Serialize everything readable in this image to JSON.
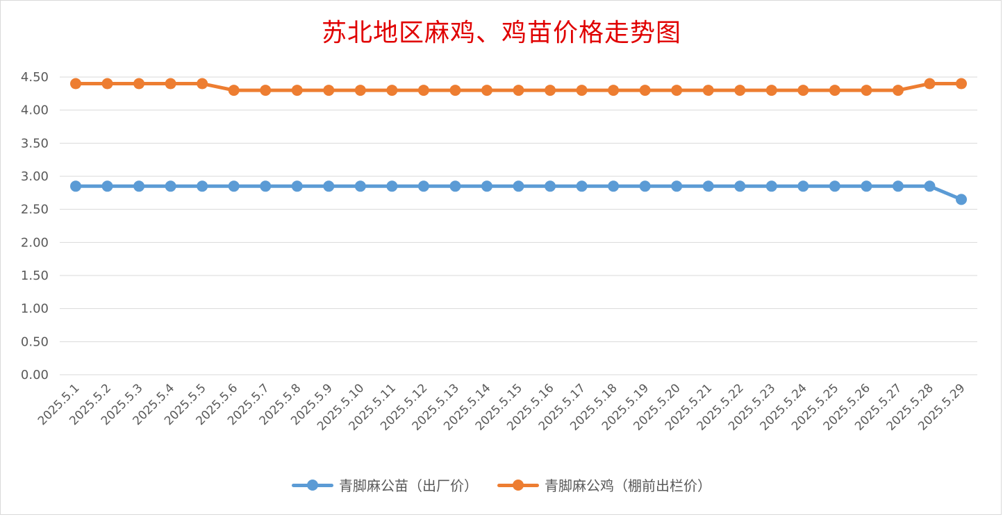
{
  "chart_data": {
    "type": "line",
    "title": "苏北地区麻鸡、鸡苗价格走势图",
    "xlabel": "",
    "ylabel": "",
    "ylim": [
      0,
      4.5
    ],
    "y_ticks": [
      "0.00",
      "0.50",
      "1.00",
      "1.50",
      "2.00",
      "2.50",
      "3.00",
      "3.50",
      "4.00",
      "4.50"
    ],
    "grid": true,
    "legend_position": "bottom",
    "categories": [
      "2025.5.1",
      "2025.5.2",
      "2025.5.3",
      "2025.5.4",
      "2025.5.5",
      "2025.5.6",
      "2025.5.7",
      "2025.5.8",
      "2025.5.9",
      "2025.5.10",
      "2025.5.11",
      "2025.5.12",
      "2025.5.13",
      "2025.5.14",
      "2025.5.15",
      "2025.5.16",
      "2025.5.17",
      "2025.5.18",
      "2025.5.19",
      "2025.5.20",
      "2025.5.21",
      "2025.5.22",
      "2025.5.23",
      "2025.5.24",
      "2025.5.25",
      "2025.5.26",
      "2025.5.27",
      "2025.5.28",
      "2025.5.29"
    ],
    "series": [
      {
        "name": "青脚麻公苗（出厂价）",
        "color": "#5b9bd5",
        "values": [
          2.85,
          2.85,
          2.85,
          2.85,
          2.85,
          2.85,
          2.85,
          2.85,
          2.85,
          2.85,
          2.85,
          2.85,
          2.85,
          2.85,
          2.85,
          2.85,
          2.85,
          2.85,
          2.85,
          2.85,
          2.85,
          2.85,
          2.85,
          2.85,
          2.85,
          2.85,
          2.85,
          2.85,
          2.65
        ]
      },
      {
        "name": "青脚麻公鸡（棚前出栏价）",
        "color": "#ed7d31",
        "values": [
          4.4,
          4.4,
          4.4,
          4.4,
          4.4,
          4.3,
          4.3,
          4.3,
          4.3,
          4.3,
          4.3,
          4.3,
          4.3,
          4.3,
          4.3,
          4.3,
          4.3,
          4.3,
          4.3,
          4.3,
          4.3,
          4.3,
          4.3,
          4.3,
          4.3,
          4.3,
          4.3,
          4.4,
          4.4
        ]
      }
    ]
  }
}
